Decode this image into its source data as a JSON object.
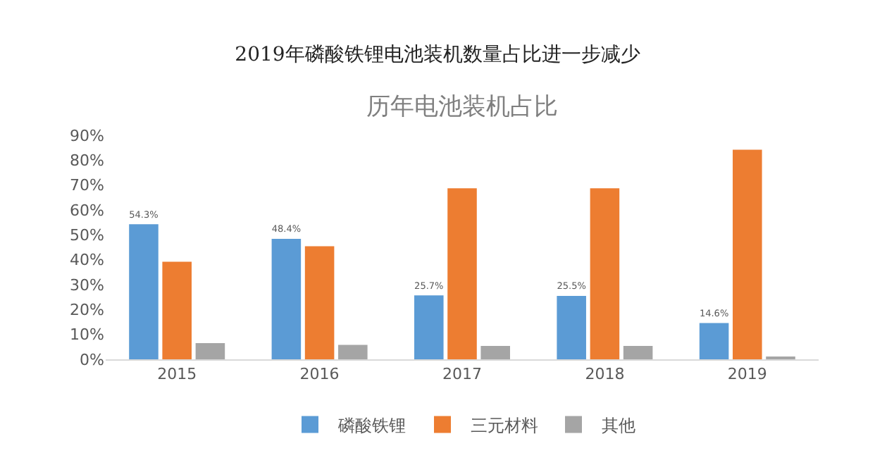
{
  "chart_data": {
    "type": "bar",
    "title": "2019年磷酸铁锂电池装机数量占比进一步减少",
    "subtitle": "历年电池装机占比",
    "categories": [
      "2015",
      "2016",
      "2017",
      "2018",
      "2019"
    ],
    "series": [
      {
        "name": "磷酸铁锂",
        "color": "#5b9bd5",
        "values": [
          54.3,
          48.4,
          25.7,
          25.5,
          14.6
        ],
        "value_labels": [
          "54.3%",
          "48.4%",
          "25.7%",
          "25.5%",
          "14.6%"
        ]
      },
      {
        "name": "三元材料",
        "color": "#ed7d31",
        "values": [
          39.2,
          45.4,
          68.7,
          68.7,
          84.2
        ]
      },
      {
        "name": "其他",
        "color": "#a5a5a5",
        "values": [
          6.5,
          5.8,
          5.4,
          5.4,
          0.9
        ]
      }
    ],
    "ylim": [
      0,
      90
    ],
    "yticks": [
      {
        "value": 0,
        "label": "0%"
      },
      {
        "value": 10,
        "label": "10%"
      },
      {
        "value": 20,
        "label": "20%"
      },
      {
        "value": 30,
        "label": "30%"
      },
      {
        "value": 40,
        "label": "40%"
      },
      {
        "value": 50,
        "label": "50%"
      },
      {
        "value": 60,
        "label": "60%"
      },
      {
        "value": 70,
        "label": "70%"
      },
      {
        "value": 80,
        "label": "80%"
      },
      {
        "value": 90,
        "label": "90%"
      }
    ],
    "grid": false,
    "legend": "bottom"
  }
}
